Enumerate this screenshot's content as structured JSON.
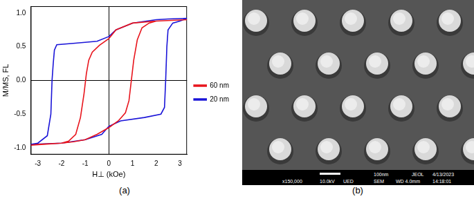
{
  "chart_data": {
    "type": "line",
    "x_label": "H⊥ (kOe)",
    "y_label": "M/MS, FL",
    "xlim": [
      -3.3,
      3.3
    ],
    "xticks": [
      -3,
      -2,
      -1,
      0,
      1,
      2,
      3
    ],
    "ylim": [
      -1.1,
      1.1
    ],
    "yticks": [
      {
        "value": -1,
        "label": "-1.0"
      },
      -0.5,
      {
        "value": 0,
        "label": "0.0"
      },
      0.5,
      {
        "value": 1,
        "label": "1.0"
      }
    ],
    "grid": false,
    "legend": "right",
    "series": [
      {
        "name": "60 nm",
        "color": "#e8141c",
        "x": [
          3.3,
          2,
          1,
          0.3,
          0,
          -0.4,
          -0.7,
          -0.85,
          -0.95,
          -1.05,
          -1.2,
          -1.4,
          -1.7,
          -2,
          -3,
          -3.3,
          -2,
          -1.5,
          -1,
          -0.5,
          0,
          0.4,
          0.7,
          0.85,
          0.95,
          1.05,
          1.2,
          1.4,
          1.7,
          2,
          3.3
        ],
        "values": [
          0.9,
          0.88,
          0.85,
          0.75,
          0.62,
          0.52,
          0.42,
          0.3,
          0.1,
          -0.2,
          -0.55,
          -0.8,
          -0.9,
          -0.93,
          -0.95,
          -0.96,
          -0.93,
          -0.91,
          -0.88,
          -0.8,
          -0.7,
          -0.6,
          -0.48,
          -0.3,
          0,
          0.3,
          0.6,
          0.78,
          0.85,
          0.88,
          0.9
        ]
      },
      {
        "name": "20 nm",
        "color": "#1a14d8",
        "x": [
          3.3,
          2.5,
          2,
          1,
          0.3,
          0,
          -0.5,
          -1.5,
          -2.2,
          -2.3,
          -2.35,
          -2.4,
          -2.45,
          -2.6,
          -3,
          -3.3,
          -2,
          -1,
          -0.3,
          0,
          0.5,
          1.5,
          2.2,
          2.35,
          2.4,
          2.45,
          2.5,
          2.7,
          3,
          3.3
        ],
        "values": [
          0.92,
          0.91,
          0.9,
          0.85,
          0.75,
          0.65,
          0.58,
          0.55,
          0.53,
          0.45,
          0.25,
          0,
          -0.5,
          -0.82,
          -0.93,
          -0.95,
          -0.93,
          -0.88,
          -0.8,
          -0.68,
          -0.6,
          -0.55,
          -0.5,
          -0.4,
          0,
          0.5,
          0.75,
          0.85,
          0.88,
          0.92
        ]
      }
    ]
  },
  "panel_labels": [
    "(a)",
    "(b)"
  ],
  "image": {
    "scale_bar": "100nm",
    "top_row": [
      "JEOL",
      "4/13/2023"
    ],
    "bottom_row": [
      "x150,000",
      "10.0kV",
      "UED",
      "SEM",
      "WD 4.0mm",
      "14:18:01"
    ]
  }
}
